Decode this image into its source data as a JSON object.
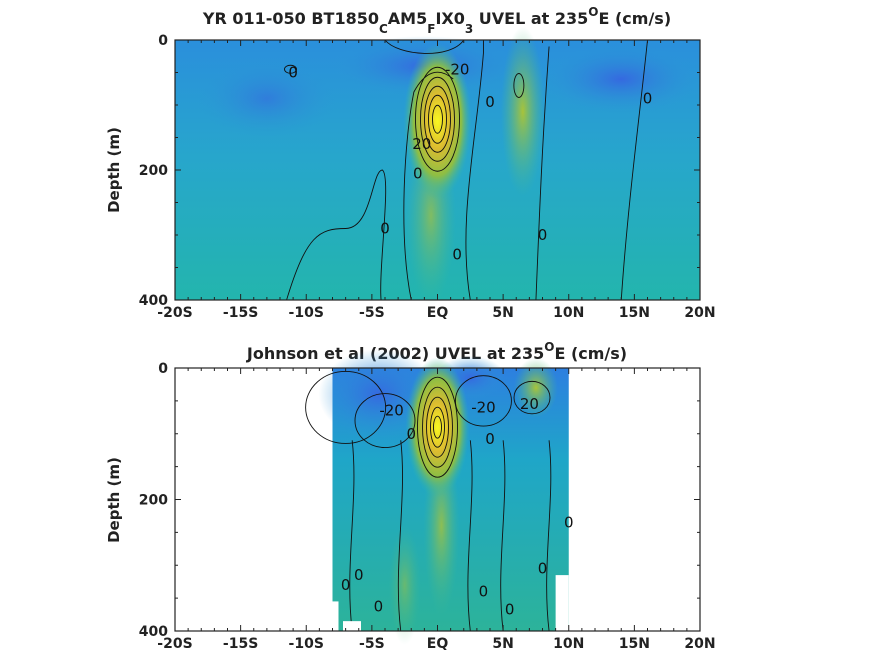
{
  "chart_data": [
    {
      "type": "heatmap",
      "title": "YR 011-050 BT1850_CAM5_FIX0_3 UVEL at 235°E (cm/s)",
      "title_parts": {
        "a": "YR 011-050 BT1850",
        "b": "C",
        "c": "AM5",
        "d": "F",
        "e": "IX0",
        "f": "3",
        "g": " UVEL at 235",
        "h": "O",
        "i": "E (cm/s)"
      },
      "xlabel": "",
      "ylabel": "Depth (m)",
      "xlim": [
        -20,
        20
      ],
      "ylim": [
        0,
        400
      ],
      "y_reversed": true,
      "x_ticks": [
        -20,
        -15,
        -10,
        -5,
        0,
        5,
        10,
        15,
        20
      ],
      "x_tick_labels": [
        "-20S",
        "-15S",
        "-10S",
        "-5S",
        "EQ",
        "5N",
        "10N",
        "15N",
        "20N"
      ],
      "y_ticks": [
        0,
        200,
        400
      ],
      "y_tick_labels": [
        "0",
        "200",
        "400"
      ],
      "data_extent": [
        -20,
        20
      ],
      "core": {
        "lat": 0,
        "depth": 125,
        "max_speed": 110
      },
      "contour_labels": [
        {
          "text": "0",
          "lat": -11,
          "depth": 50
        },
        {
          "text": "-20",
          "lat": 1.5,
          "depth": 45
        },
        {
          "text": "0",
          "lat": 4,
          "depth": 95
        },
        {
          "text": "0",
          "lat": 16,
          "depth": 90
        },
        {
          "text": "20",
          "lat": -1.2,
          "depth": 160
        },
        {
          "text": "0",
          "lat": -1.5,
          "depth": 205
        },
        {
          "text": "0",
          "lat": -4,
          "depth": 290
        },
        {
          "text": "0",
          "lat": 1.5,
          "depth": 330
        },
        {
          "text": "0",
          "lat": 8,
          "depth": 300
        }
      ]
    },
    {
      "type": "heatmap",
      "title": "Johnson et al (2002) UVEL at 235°E (cm/s)",
      "title_parts": {
        "a": "Johnson et al (2002) UVEL at 235",
        "b": "O",
        "c": "E (cm/s)"
      },
      "xlabel": "",
      "ylabel": "Depth (m)",
      "xlim": [
        -20,
        20
      ],
      "ylim": [
        0,
        400
      ],
      "y_reversed": true,
      "x_ticks": [
        -20,
        -15,
        -10,
        -5,
        0,
        5,
        10,
        15,
        20
      ],
      "x_tick_labels": [
        "-20S",
        "-15S",
        "-10S",
        "-5S",
        "EQ",
        "5N",
        "10N",
        "15N",
        "20N"
      ],
      "y_ticks": [
        0,
        200,
        400
      ],
      "y_tick_labels": [
        "0",
        "200",
        "400"
      ],
      "data_extent": [
        -8,
        10
      ],
      "core": {
        "lat": 0,
        "depth": 90,
        "max_speed": 110
      },
      "contour_labels": [
        {
          "text": "-20",
          "lat": -3.5,
          "depth": 65
        },
        {
          "text": "-20",
          "lat": 3.5,
          "depth": 60
        },
        {
          "text": "20",
          "lat": 7,
          "depth": 55
        },
        {
          "text": "0",
          "lat": -2,
          "depth": 100
        },
        {
          "text": "0",
          "lat": 4,
          "depth": 108
        },
        {
          "text": "0",
          "lat": 10,
          "depth": 235
        },
        {
          "text": "0",
          "lat": -6,
          "depth": 315
        },
        {
          "text": "0",
          "lat": -7,
          "depth": 330
        },
        {
          "text": "0",
          "lat": 8,
          "depth": 305
        },
        {
          "text": "0",
          "lat": 3.5,
          "depth": 340
        },
        {
          "text": "0",
          "lat": -4.5,
          "depth": 363
        },
        {
          "text": "0",
          "lat": 5.5,
          "depth": 367
        }
      ]
    }
  ]
}
